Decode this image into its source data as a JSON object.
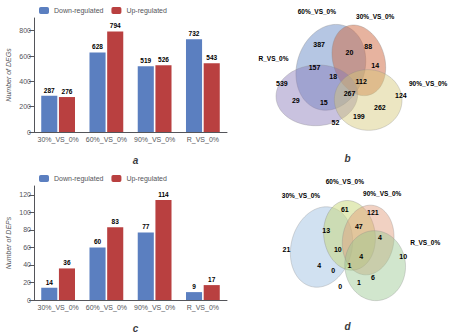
{
  "chart_data": [
    {
      "type": "bar",
      "title": "a",
      "categories": [
        "30%_VS_0%",
        "60%_VS_0%",
        "90%_VS_0%",
        "R_VS_0%"
      ],
      "series": [
        {
          "name": "Down-regulated",
          "color": "#5B7FC0",
          "values": [
            287,
            628,
            519,
            732
          ]
        },
        {
          "name": "Up-regulated",
          "color": "#B94040",
          "values": [
            276,
            794,
            526,
            543
          ]
        }
      ],
      "ylabel": "Number of DEGs",
      "ylim": [
        0,
        900
      ],
      "yticks": [
        0,
        200,
        400,
        600,
        800
      ],
      "grid": false,
      "legend": "upper left",
      "data_labels": true
    },
    {
      "type": "venn",
      "title": "b",
      "sets": [
        {
          "name": "60%_VS_0%",
          "color": "#6B8DC8"
        },
        {
          "name": "30%_VS_0%",
          "color": "#D06840"
        },
        {
          "name": "R_VS_0%",
          "color": "#8878B8"
        },
        {
          "name": "90%_VS_0%",
          "color": "#D4C878"
        }
      ],
      "values": [
        539,
        387,
        88,
        124,
        157,
        20,
        14,
        29,
        18,
        112,
        15,
        267,
        262,
        52,
        199
      ]
    },
    {
      "type": "bar",
      "title": "c",
      "categories": [
        "30%_VS_0%",
        "60%_VS_0%",
        "90%_VS_0%",
        "R_VS_0%"
      ],
      "series": [
        {
          "name": "Down-regulated",
          "color": "#5B7FC0",
          "values": [
            14,
            60,
            77,
            9
          ]
        },
        {
          "name": "Up-regulated",
          "color": "#B94040",
          "values": [
            36,
            83,
            114,
            17
          ]
        }
      ],
      "ylabel": "Number of DEPs",
      "ylim": [
        0,
        130
      ],
      "yticks": [
        0,
        20,
        40,
        60,
        80,
        100,
        120
      ],
      "grid": false,
      "legend": "upper left",
      "data_labels": true
    },
    {
      "type": "venn",
      "title": "d",
      "sets": [
        {
          "name": "30%_VS_0%",
          "color": "#9ABCE0"
        },
        {
          "name": "60%_VS_0%",
          "color": "#C8D878"
        },
        {
          "name": "90%_VS_0%",
          "color": "#E09878"
        },
        {
          "name": "R_VS_0%",
          "color": "#98C890"
        }
      ],
      "values": [
        21,
        61,
        121,
        10,
        13,
        47,
        4,
        4,
        10,
        4,
        0,
        1,
        6,
        0,
        1
      ]
    }
  ]
}
